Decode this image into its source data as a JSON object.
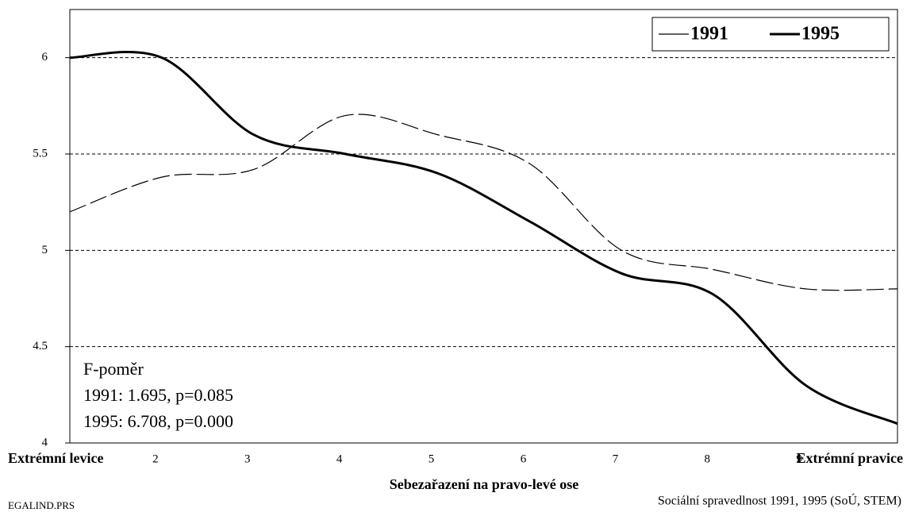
{
  "chart_data": {
    "type": "line",
    "x_label": "Sebezařazení na pravo-levé ose",
    "categories": [
      "Extrémní levice",
      "2",
      "3",
      "4",
      "5",
      "6",
      "7",
      "8",
      "9",
      "Extrémní pravice"
    ],
    "series": [
      {
        "name": "1991",
        "color": "#000000",
        "values": [
          5.2,
          5.38,
          5.42,
          5.7,
          5.6,
          5.45,
          5.0,
          4.9,
          4.8,
          4.8
        ]
      },
      {
        "name": "1995",
        "color": "#000000",
        "values": [
          6.0,
          6.0,
          5.6,
          5.5,
          5.4,
          5.15,
          4.88,
          4.77,
          4.3,
          4.1
        ]
      }
    ],
    "ylim": [
      4,
      6.25
    ],
    "yticks": [
      4,
      4.5,
      5,
      5.5,
      6
    ],
    "grid": true,
    "legend": "top-right",
    "annotations": [
      "F-poměr",
      "1991: 1.695, p=0.085",
      "1995: 6.708, p=0.000"
    ],
    "footer_left": "EGALIND.PRS",
    "footer_right": "Sociální spravedlnost 1991, 1995 (SoÚ, STEM)"
  }
}
